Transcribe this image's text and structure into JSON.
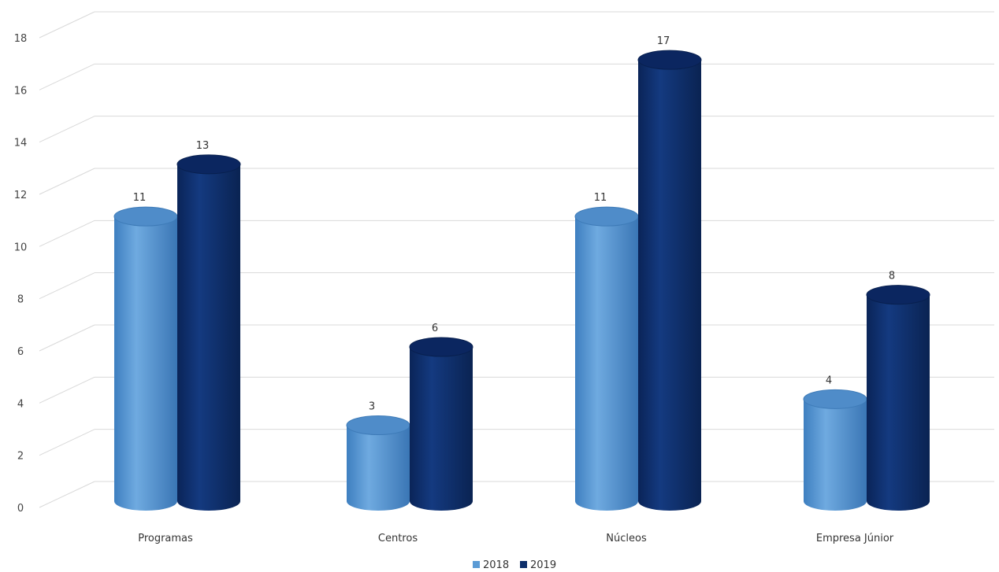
{
  "chart_data": {
    "type": "bar",
    "categories": [
      "Programas",
      "Centros",
      "Núcleos",
      "Empresa Júnior"
    ],
    "series": [
      {
        "name": "2018",
        "values": [
          11,
          3,
          11,
          4
        ],
        "color": "#5B9BD5"
      },
      {
        "name": "2019",
        "values": [
          13,
          6,
          17,
          8
        ],
        "color": "#0E2F6B"
      }
    ],
    "ylim": [
      0,
      18
    ],
    "yticks": [
      0,
      2,
      4,
      6,
      8,
      10,
      12,
      14,
      16,
      18
    ],
    "grid": true,
    "legend_position": "bottom",
    "style": "3d-cylinder"
  }
}
